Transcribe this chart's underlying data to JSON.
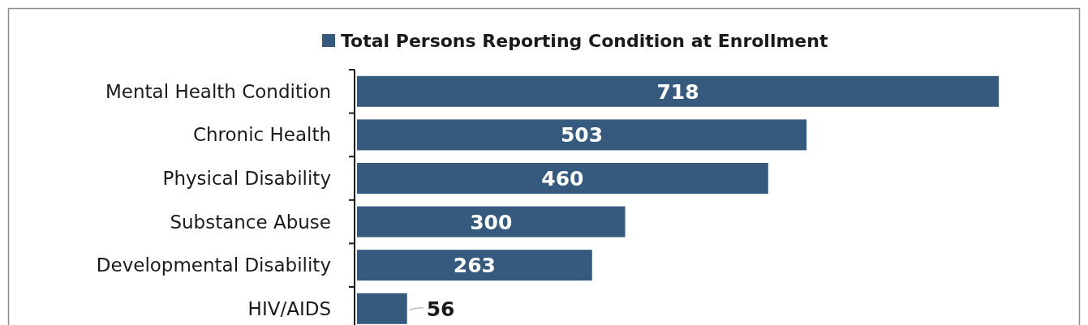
{
  "chart_data": {
    "type": "bar",
    "orientation": "horizontal",
    "categories": [
      "Mental Health Condition",
      "Chronic Health",
      "Physical Disability",
      "Substance Abuse",
      "Developmental Disability",
      "HIV/AIDS"
    ],
    "series": [
      {
        "name": "Total Persons Reporting Condition at Enrollment",
        "color": "#36597e",
        "values": [
          718,
          503,
          460,
          300,
          263,
          56
        ]
      }
    ],
    "data_labels": true,
    "legend": "top"
  }
}
